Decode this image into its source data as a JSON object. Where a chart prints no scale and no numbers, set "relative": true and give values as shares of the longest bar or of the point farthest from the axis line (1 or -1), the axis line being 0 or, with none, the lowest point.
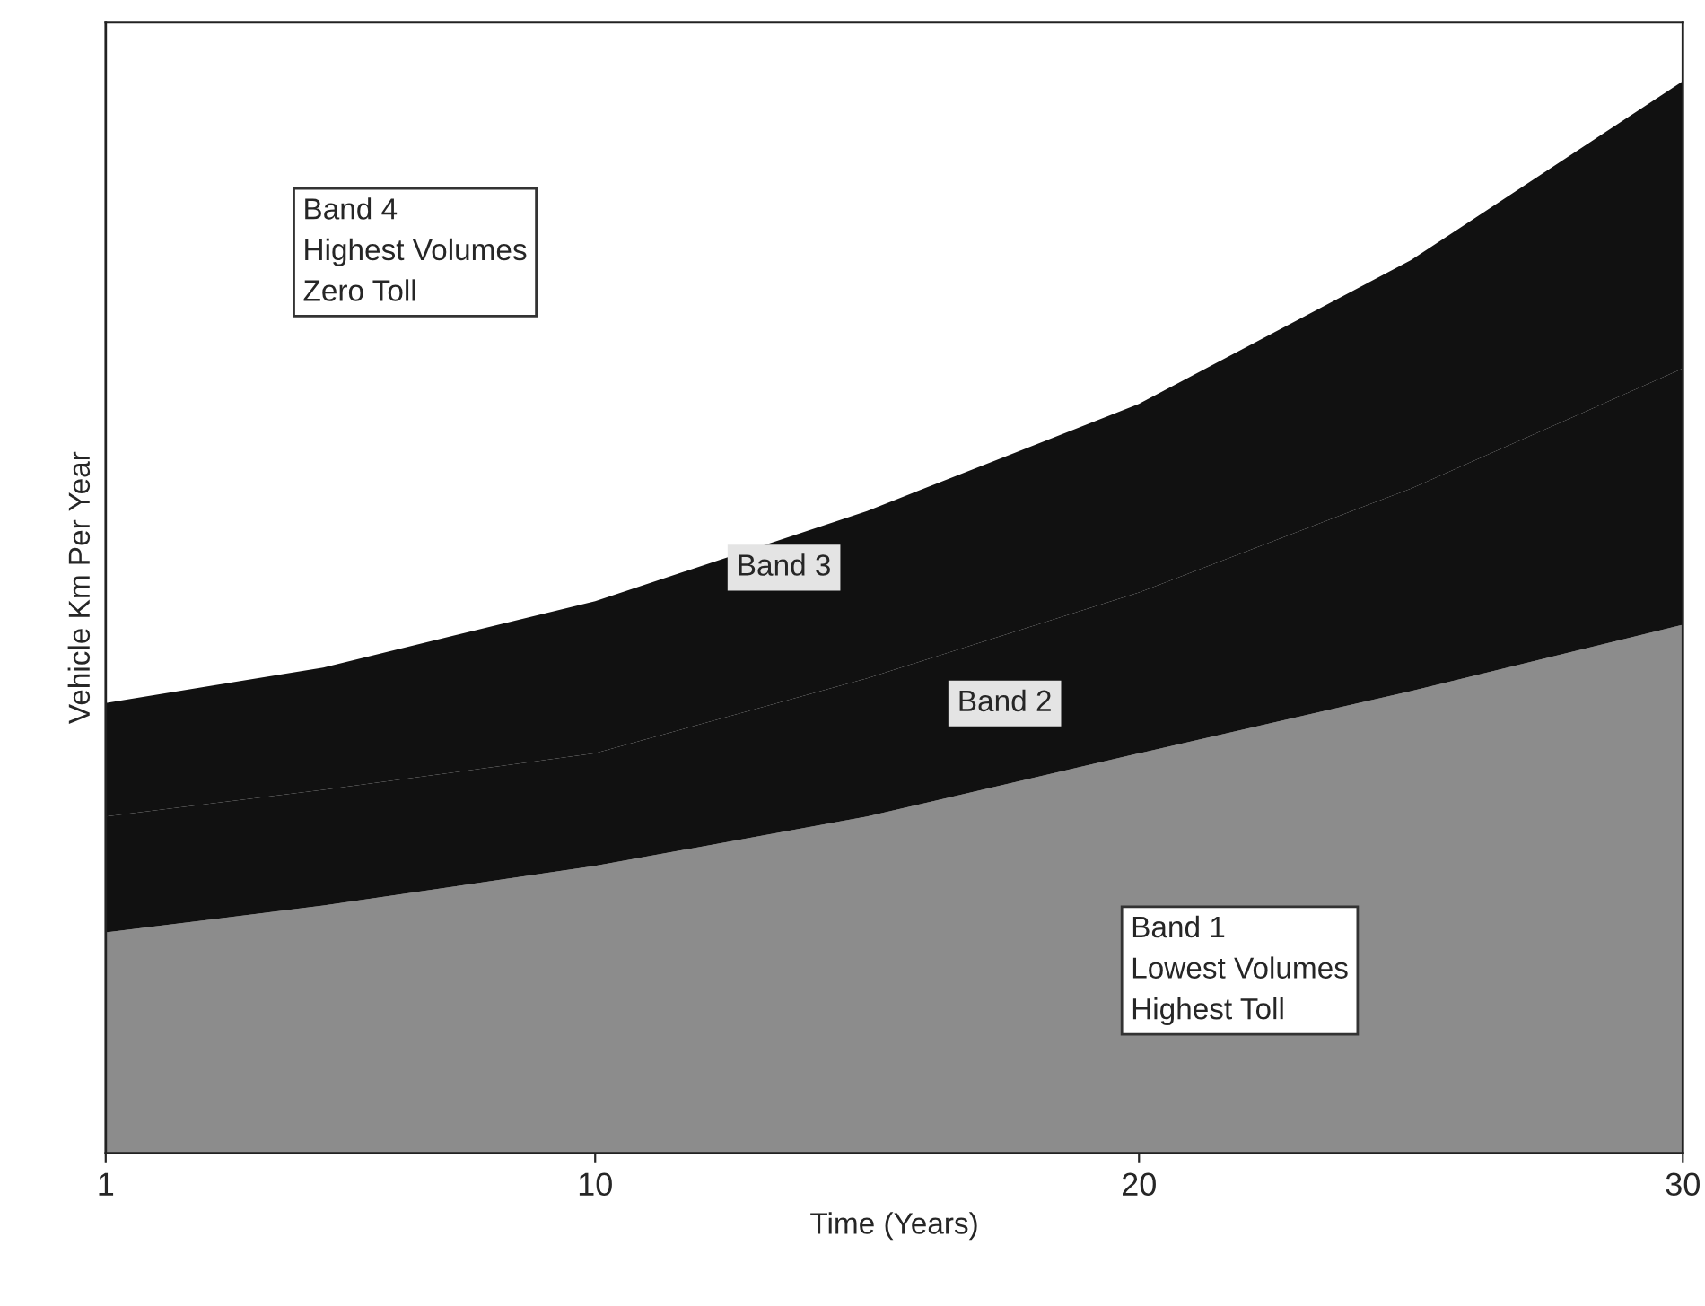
{
  "chart_data": {
    "type": "area",
    "stacked": true,
    "relative": true,
    "xlabel": "Time (Years)",
    "ylabel": "Vehicle Km Per Year",
    "x": [
      1,
      5,
      10,
      15,
      20,
      25,
      30
    ],
    "xlim": [
      1,
      30
    ],
    "xticks": [
      1,
      10,
      20,
      30
    ],
    "grid": false,
    "series": [
      {
        "color": "#8c8c8c",
        "values": [
          0.206,
          0.231,
          0.268,
          0.314,
          0.373,
          0.431,
          0.493
        ]
      },
      {
        "color": "#111111",
        "values": [
          0.108,
          0.108,
          0.105,
          0.129,
          0.15,
          0.189,
          0.239
        ]
      },
      {
        "color": "#111111",
        "values": [
          0.106,
          0.114,
          0.142,
          0.156,
          0.176,
          0.213,
          0.268
        ]
      }
    ],
    "annotations": [
      "Band 4\nHighest Volumes\nZero Toll",
      "Band 3",
      "Band 2",
      "Band 1\nLowest Volumes\nHighest Toll"
    ]
  }
}
